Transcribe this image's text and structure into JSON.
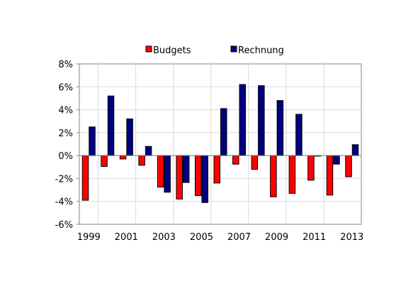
{
  "chart_data": {
    "type": "bar",
    "categories": [
      "1999",
      "2000",
      "2001",
      "2002",
      "2003",
      "2004",
      "2005",
      "2006",
      "2007",
      "2008",
      "2009",
      "2010",
      "2011",
      "2012",
      "2013"
    ],
    "x_tick_labels": [
      "1999",
      "2001",
      "2003",
      "2005",
      "2007",
      "2009",
      "2011",
      "2013"
    ],
    "series": [
      {
        "name": "Budgets",
        "color": "#ff0000",
        "values": [
          -3.9,
          -0.95,
          -0.3,
          -0.85,
          -2.75,
          -3.8,
          -3.5,
          -2.4,
          -0.75,
          -1.2,
          -3.6,
          -3.3,
          -2.15,
          -3.45,
          -1.85
        ]
      },
      {
        "name": "Rechnung",
        "color": "#000080",
        "values": [
          2.5,
          5.2,
          3.2,
          0.8,
          -3.2,
          -2.35,
          -4.1,
          4.1,
          6.2,
          6.1,
          4.8,
          3.6,
          -0.05,
          -0.75,
          0.95
        ]
      }
    ],
    "ylim": [
      -6,
      8
    ],
    "y_tick_values": [
      -6,
      -4,
      -2,
      0,
      2,
      4,
      6,
      8
    ],
    "y_tick_labels": [
      "-6%",
      "-4%",
      "-2%",
      "0%",
      "2%",
      "4%",
      "6%",
      "8%"
    ],
    "title": "",
    "xlabel": "",
    "ylabel": "",
    "grid": true,
    "legend_position": "top"
  }
}
